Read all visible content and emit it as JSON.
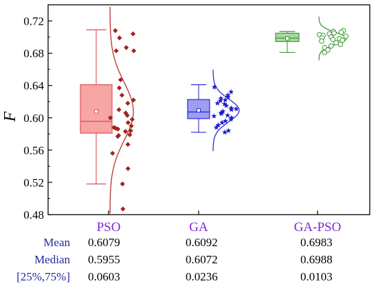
{
  "chart_data": {
    "type": "box",
    "ylabel": "F",
    "ylim": [
      0.48,
      0.74
    ],
    "yticks": [
      "0.48",
      "0.52",
      "0.56",
      "0.60",
      "0.64",
      "0.68",
      "0.72"
    ],
    "categories": [
      "PSO",
      "GA",
      "GA-PSO"
    ],
    "series": [
      {
        "color": "#d9534f",
        "fill": "#f7a5a5",
        "marker": "diamond",
        "marker_color": "#a0251c",
        "whisker_low": 0.518,
        "q1": 0.581,
        "median": 0.5955,
        "q3": 0.641,
        "whisker_high": 0.709,
        "mean": 0.6079,
        "points": [
          0.708,
          0.704,
          0.699,
          0.687,
          0.683,
          0.683,
          0.647,
          0.637,
          0.628,
          0.622,
          0.618,
          0.61,
          0.606,
          0.603,
          0.6,
          0.598,
          0.594,
          0.59,
          0.588,
          0.587,
          0.586,
          0.584,
          0.583,
          0.579,
          0.578,
          0.577,
          0.567,
          0.556,
          0.537,
          0.518,
          0.487
        ],
        "curve_mu": 0.6079,
        "curve_sigma": 0.036
      },
      {
        "color": "#2a2adb",
        "fill": "#9e9ef0",
        "marker": "star",
        "marker_color": "#1d1dcc",
        "whisker_low": 0.582,
        "q1": 0.599,
        "median": 0.6072,
        "q3": 0.6226,
        "whisker_high": 0.641,
        "mean": 0.6092,
        "points": [
          0.638,
          0.632,
          0.628,
          0.626,
          0.624,
          0.622,
          0.621,
          0.618,
          0.617,
          0.615,
          0.612,
          0.611,
          0.61,
          0.608,
          0.606,
          0.605,
          0.603,
          0.602,
          0.6,
          0.598,
          0.596,
          0.594,
          0.591,
          0.588,
          0.584,
          0.582
        ],
        "curve_mu": 0.6092,
        "curve_sigma": 0.014
      },
      {
        "color": "#3a9a32",
        "fill": "#a8d8a0",
        "marker": "circle",
        "marker_color": "#3a9a32",
        "whisker_low": 0.681,
        "q1": 0.6945,
        "median": 0.6988,
        "q3": 0.7048,
        "whisker_high": 0.707,
        "mean": 0.6983,
        "points": [
          0.708,
          0.707,
          0.706,
          0.705,
          0.704,
          0.703,
          0.702,
          0.701,
          0.7,
          0.699,
          0.698,
          0.697,
          0.696,
          0.695,
          0.693,
          0.691,
          0.689,
          0.687,
          0.684,
          0.681
        ],
        "curve_mu": 0.6983,
        "curve_sigma": 0.0075
      }
    ]
  },
  "stats_table": {
    "rows": [
      {
        "name": "Mean",
        "values": [
          "0.6079",
          "0.6092",
          "0.6983"
        ]
      },
      {
        "name": "Median",
        "values": [
          "0.5955",
          "0.6072",
          "0.6988"
        ]
      },
      {
        "name": "[25%,75%]",
        "values": [
          "0.0603",
          "0.0236",
          "0.0103"
        ]
      }
    ]
  },
  "colors": {
    "category_label": "#7a28d8",
    "stat_name": "#1f2a9a",
    "axis": "#000000"
  }
}
